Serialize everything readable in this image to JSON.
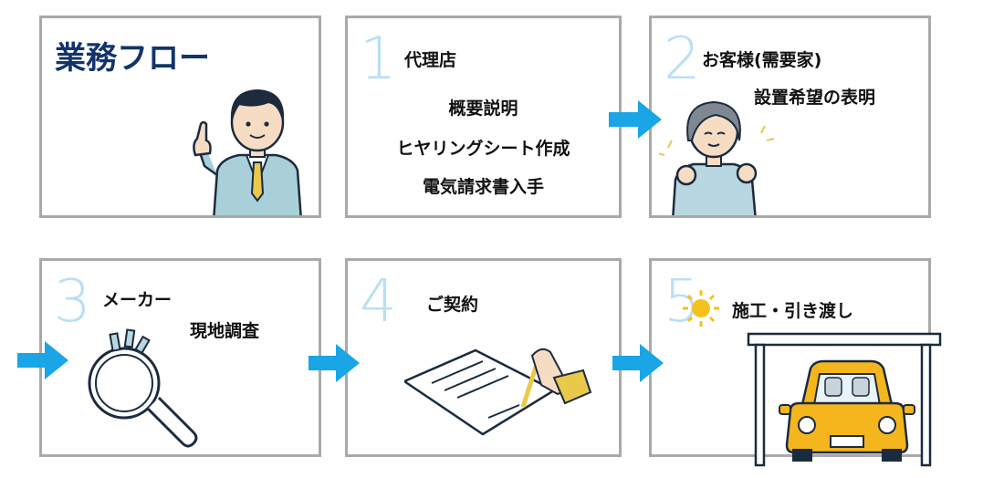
{
  "title": "業務フロー",
  "steps": [
    {
      "number": "1",
      "actor": "代理店",
      "actions": [
        "概要説明",
        "ヒヤリングシート作成",
        "電気請求書入手"
      ]
    },
    {
      "number": "2",
      "actor": "お客様(需要家)",
      "actions": [
        "設置希望の表明"
      ]
    },
    {
      "number": "3",
      "actor": "メーカー",
      "actions": [
        "現地調査"
      ]
    },
    {
      "number": "4",
      "actor": "ご契約",
      "actions": []
    },
    {
      "number": "5",
      "actor": "施工・引き渡し",
      "actions": []
    }
  ],
  "colors": {
    "border": "#a9a9a9",
    "arrow": "#19a5e6",
    "number": "#b9dff5",
    "title": "#12346b"
  }
}
